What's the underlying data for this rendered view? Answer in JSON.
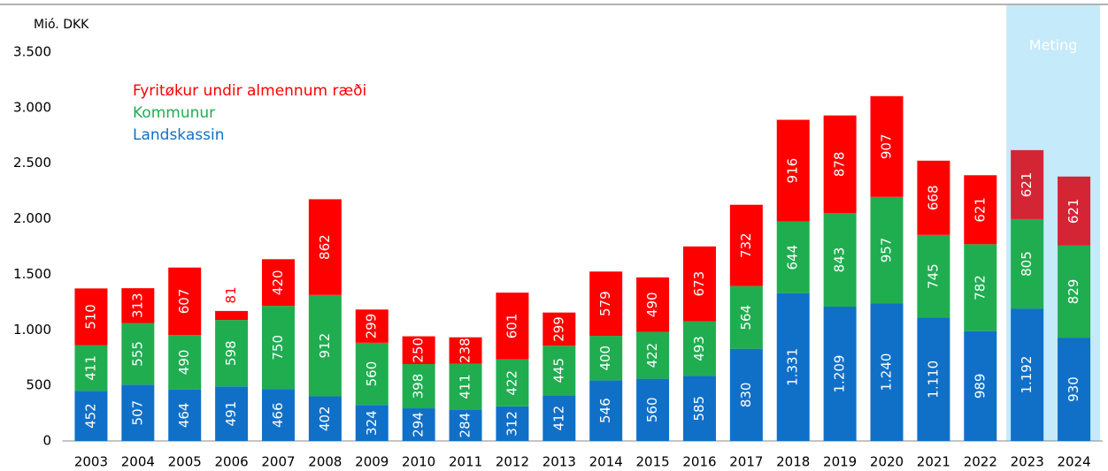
{
  "chart_data": {
    "type": "stacked_bar",
    "y_axis_label": "Mió. DKK",
    "categories": [
      "2003",
      "2004",
      "2005",
      "2006",
      "2007",
      "2008",
      "2009",
      "2010",
      "2011",
      "2012",
      "2013",
      "2014",
      "2015",
      "2016",
      "2017",
      "2018",
      "2019",
      "2020",
      "2021",
      "2022",
      "2023",
      "2024"
    ],
    "series": [
      {
        "name": "Landskassin",
        "color": "#1070c8",
        "values": [
          452,
          507,
          464,
          491,
          466,
          402,
          324,
          294,
          284,
          312,
          412,
          546,
          560,
          585,
          830,
          1331,
          1209,
          1240,
          1110,
          989,
          1192,
          930
        ],
        "value_labels": [
          "452",
          "507",
          "464",
          "491",
          "466",
          "402",
          "324",
          "294",
          "284",
          "312",
          "412",
          "546",
          "560",
          "585",
          "830",
          "1.331",
          "1.209",
          "1.240",
          "1.110",
          "989",
          "1.192",
          "930"
        ]
      },
      {
        "name": "Kommunur",
        "color": "#20ad50",
        "values": [
          411,
          555,
          490,
          598,
          750,
          912,
          560,
          398,
          411,
          422,
          445,
          400,
          422,
          493,
          564,
          644,
          843,
          957,
          745,
          782,
          805,
          829
        ]
      },
      {
        "name": "Fyritøkur undir almennum ræði",
        "color": "#ff0000",
        "colors": [
          "#ff0000",
          "#ff0000",
          "#ff0000",
          "#ff0000",
          "#ff0000",
          "#ff0000",
          "#ff0000",
          "#ff0000",
          "#ff0000",
          "#ff0000",
          "#ff0000",
          "#ff0000",
          "#ff0000",
          "#ff0000",
          "#ff0000",
          "#ff0000",
          "#ff0000",
          "#ff0000",
          "#ff0000",
          "#ff0000",
          "#d42535",
          "#d42535"
        ],
        "values": [
          510,
          313,
          607,
          81,
          420,
          862,
          299,
          250,
          238,
          601,
          299,
          579,
          490,
          673,
          732,
          916,
          878,
          907,
          668,
          621,
          621,
          621
        ]
      }
    ],
    "shade": {
      "label": "Meting",
      "categories": [
        "2023",
        "2024"
      ],
      "color": "#c5eafa"
    },
    "ylim": [
      0,
      3500
    ],
    "yticks": [
      0,
      500,
      {
        "value": 1000,
        "label": "1.000"
      },
      {
        "value": 1500,
        "label": "1.500"
      },
      {
        "value": 2000,
        "label": "2.000"
      },
      {
        "value": 2500,
        "label": "2.500"
      },
      {
        "value": 3000,
        "label": "3.000"
      },
      {
        "value": 3500,
        "label": "3.500"
      }
    ],
    "legend": "upper left"
  }
}
